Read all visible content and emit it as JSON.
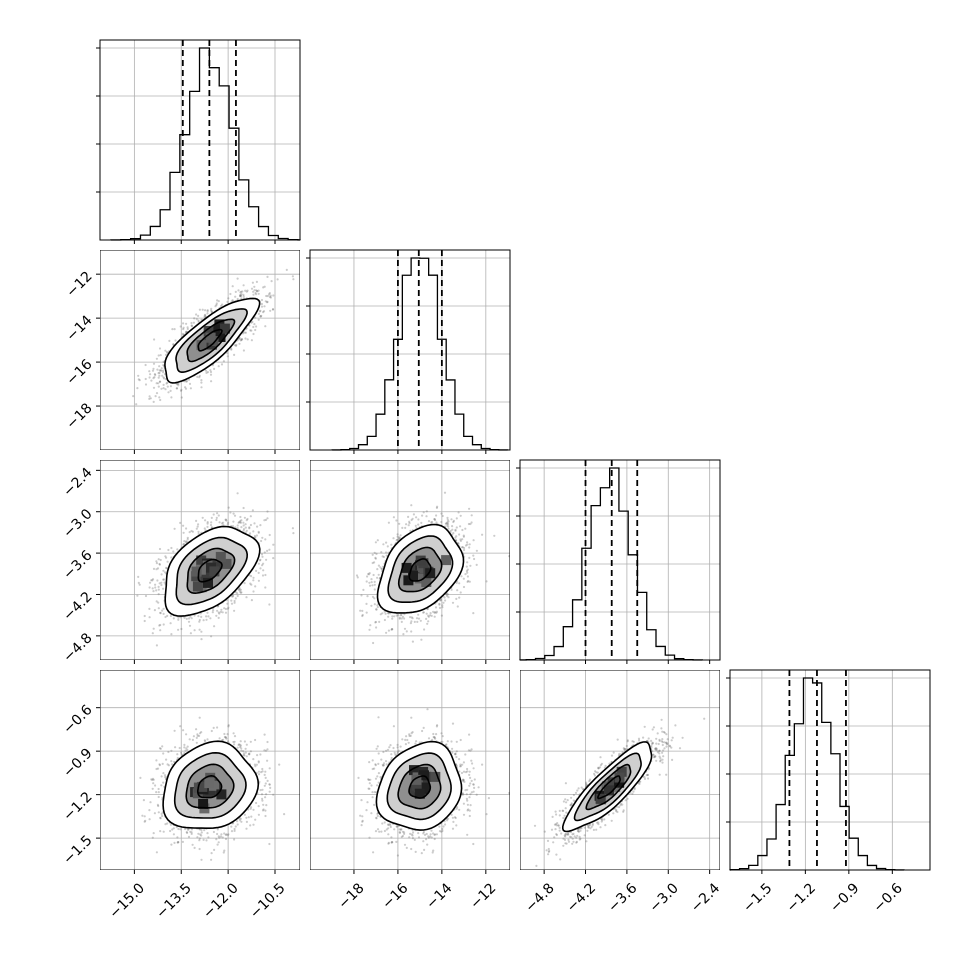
{
  "chart_data": {
    "type": "corner",
    "title": "",
    "grid": true,
    "parameters": [
      {
        "xlim": [
          -16.1,
          -9.7
        ],
        "ylim": [
          -20.0,
          -10.9
        ],
        "mean": -12.6,
        "sd": 0.75,
        "quantiles": [
          -13.45,
          -12.6,
          -11.75
        ],
        "ticks": [
          -15.0,
          -13.5,
          -12.0,
          -10.5
        ],
        "tick_labels": [
          "−15.0",
          "−13.5",
          "−12.0",
          "−10.5"
        ],
        "y_ticks": [
          -18,
          -16,
          -14,
          -12
        ],
        "y_tick_labels": [
          "−18",
          "−16",
          "−14",
          "−12"
        ]
      },
      {
        "xlim": [
          -20.0,
          -10.9
        ],
        "ylim": [
          -5.15,
          -2.25
        ],
        "mean": -15.0,
        "sd": 0.95,
        "quantiles": [
          -16.0,
          -15.05,
          -14.0
        ],
        "ticks": [
          -18,
          -16,
          -14,
          -12
        ],
        "tick_labels": [
          "−18",
          "−16",
          "−14",
          "−12"
        ],
        "y_ticks": [
          -4.8,
          -4.2,
          -3.6,
          -3.0,
          -2.4
        ],
        "y_tick_labels": [
          "−4.8",
          "−4.2",
          "−3.6",
          "−3.0",
          "−2.4"
        ]
      },
      {
        "xlim": [
          -5.15,
          -2.25
        ],
        "ylim": [
          -1.72,
          -0.34
        ],
        "mean": -3.85,
        "sd": 0.32,
        "quantiles": [
          -4.2,
          -3.82,
          -3.45
        ],
        "ticks": [
          -4.8,
          -4.2,
          -3.6,
          -3.0,
          -2.4
        ],
        "tick_labels": [
          "−4.8",
          "−4.2",
          "−3.6",
          "−3.0",
          "−2.4"
        ],
        "y_ticks": [
          -1.5,
          -1.2,
          -0.9,
          -0.6
        ],
        "y_tick_labels": [
          "−1.5",
          "−1.2",
          "−0.9",
          "−0.6"
        ]
      },
      {
        "xlim": [
          -1.72,
          -0.34
        ],
        "mean": -1.15,
        "sd": 0.15,
        "quantiles": [
          -1.31,
          -1.12,
          -0.92
        ],
        "ticks": [
          -1.5,
          -1.2,
          -0.9,
          -0.6
        ],
        "tick_labels": [
          "−1.5",
          "−1.2",
          "−0.9",
          "−0.6"
        ]
      }
    ],
    "correlations": [
      [
        1,
        0.8,
        0.45,
        0.15
      ],
      [
        0.8,
        1,
        0.35,
        0.15
      ],
      [
        0.45,
        0.35,
        1,
        0.85
      ],
      [
        0.15,
        0.15,
        0.85,
        1
      ]
    ],
    "contour_levels_sigma": [
      0.5,
      1.0,
      1.5,
      2.0
    ],
    "samples_per_panel": 2200
  }
}
